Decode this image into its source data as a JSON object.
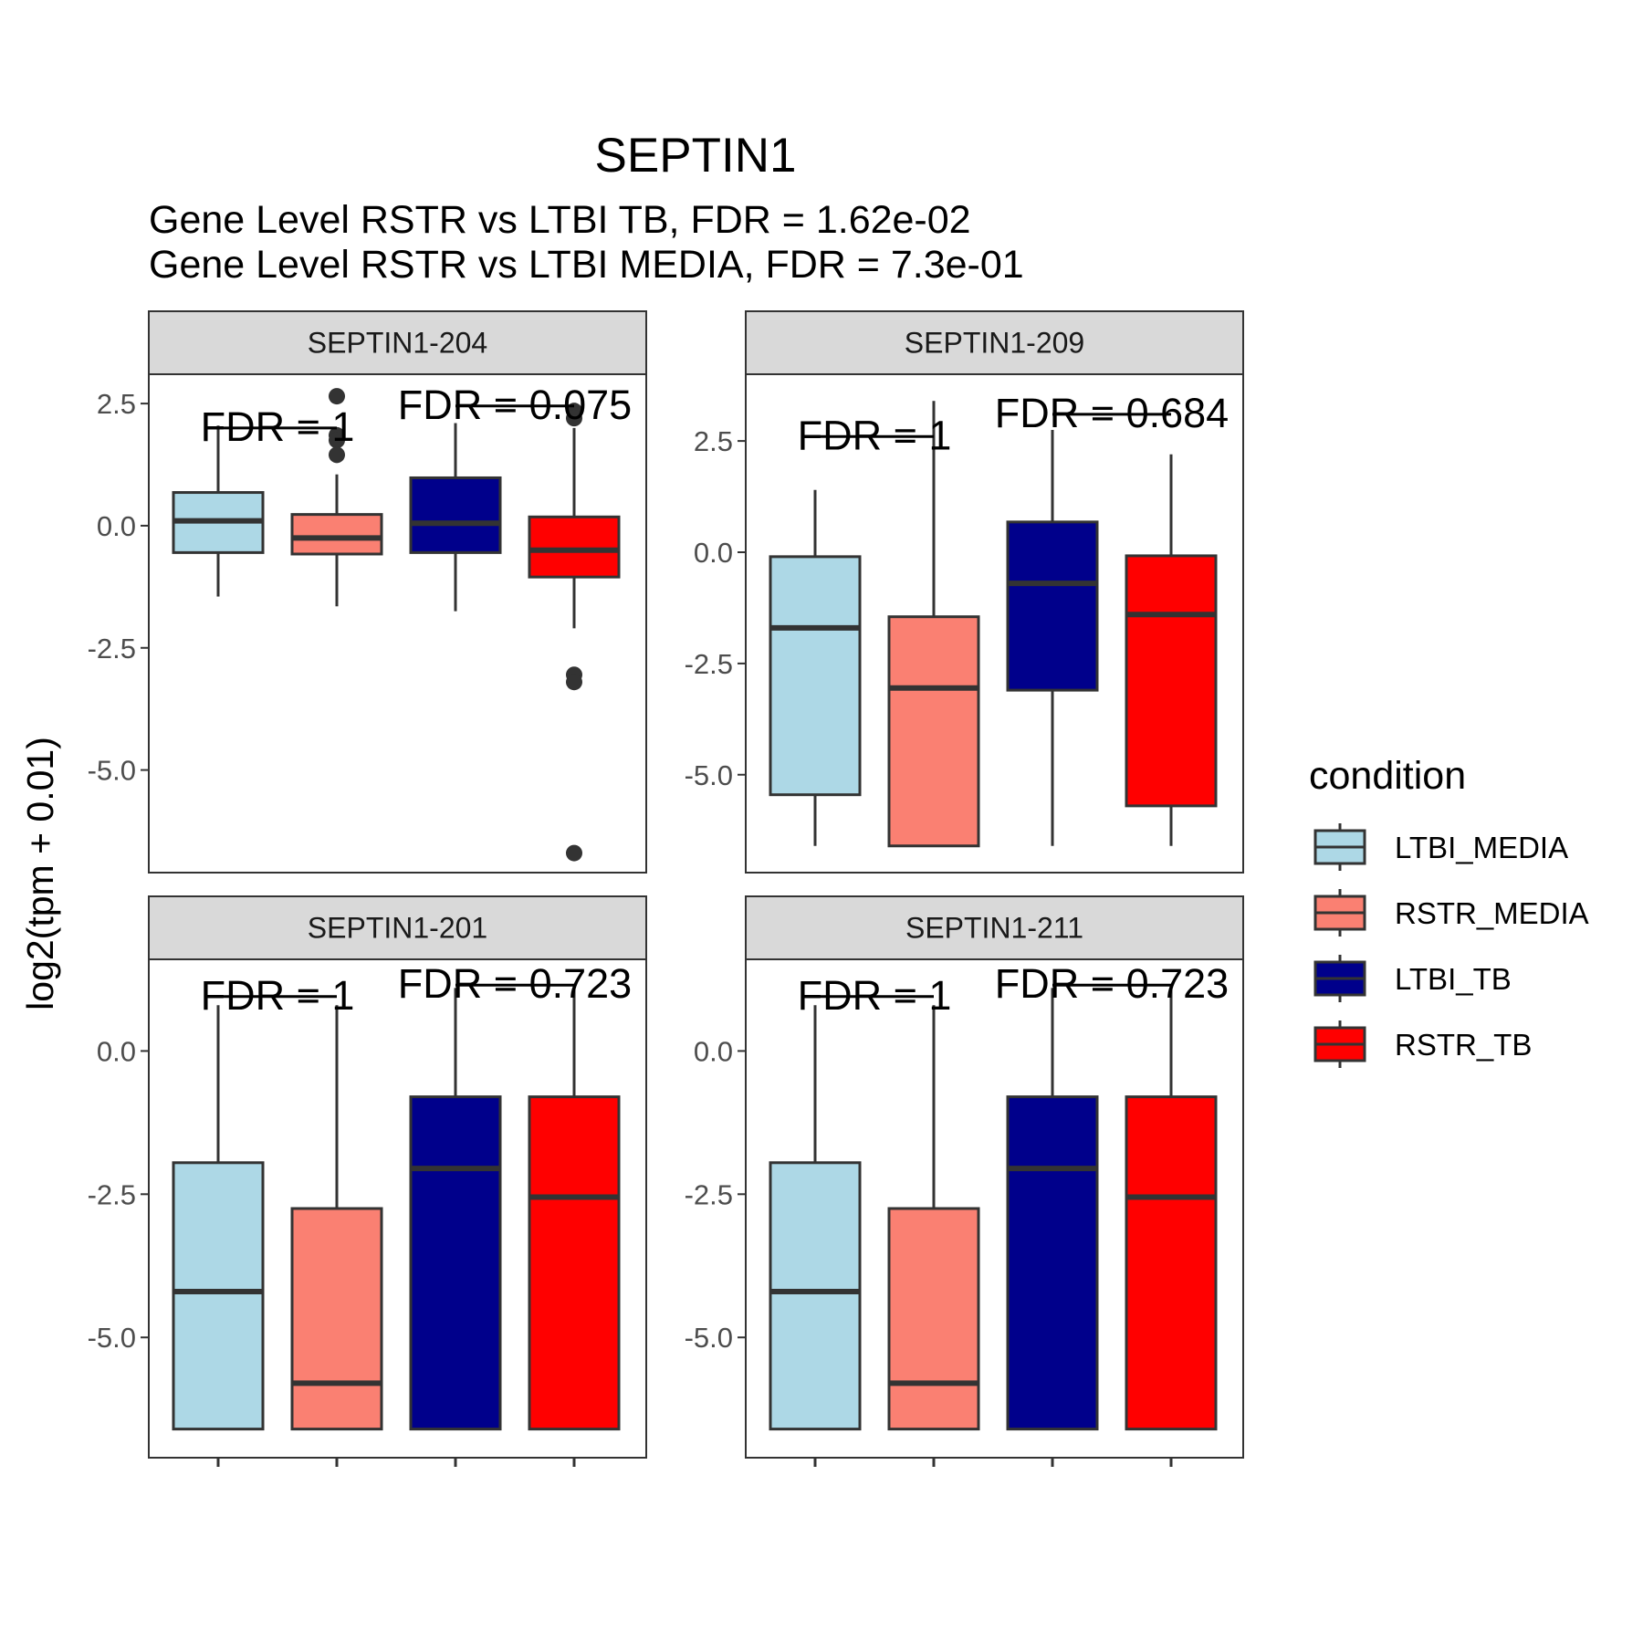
{
  "chart_data": {
    "type": "box",
    "title": "SEPTIN1",
    "subtitle_lines": [
      "Gene Level RSTR vs LTBI TB, FDR =  1.62e-02",
      "Gene Level RSTR vs LTBI MEDIA, FDR =  7.3e-01"
    ],
    "ylabel": "log2(tpm + 0.01)",
    "xlabel": "",
    "grid": false,
    "legend": {
      "title": "condition",
      "position": "right",
      "entries": [
        {
          "label": "LTBI_MEDIA",
          "color": "#ADD8E6"
        },
        {
          "label": "RSTR_MEDIA",
          "color": "#FA8072"
        },
        {
          "label": "LTBI_TB",
          "color": "#00008B"
        },
        {
          "label": "RSTR_TB",
          "color": "#FF0000"
        }
      ]
    },
    "categories": [
      "LTBI_MEDIA",
      "RSTR_MEDIA",
      "LTBI_TB",
      "RSTR_TB"
    ],
    "facets": [
      {
        "label": "SEPTIN1-204",
        "ylim": [
          -7.1,
          3.1
        ],
        "yticks": [
          {
            "value": 2.5,
            "label": "2.5"
          },
          {
            "value": 0.0,
            "label": "0.0"
          },
          {
            "value": -2.5,
            "label": "-2.5"
          },
          {
            "value": -5.0,
            "label": "-5.0"
          }
        ],
        "boxes": [
          {
            "lower": -1.45,
            "q1": -0.55,
            "median": 0.1,
            "q3": 0.68,
            "upper": 2.05,
            "outliers": []
          },
          {
            "lower": -1.65,
            "q1": -0.58,
            "median": -0.25,
            "q3": 0.23,
            "upper": 1.05,
            "outliers": [
              2.65,
              1.85,
              1.75,
              1.45
            ]
          },
          {
            "lower": -1.75,
            "q1": -0.55,
            "median": 0.05,
            "q3": 0.98,
            "upper": 2.1,
            "outliers": []
          },
          {
            "lower": -2.1,
            "q1": -1.05,
            "median": -0.5,
            "q3": 0.18,
            "upper": 2.0,
            "outliers": [
              2.35,
              2.2,
              -3.05,
              -3.2,
              -6.7
            ]
          }
        ],
        "comparisons": [
          {
            "pair": [
              1,
              2
            ],
            "y": 2.0,
            "label": "FDR =  1"
          },
          {
            "pair": [
              3,
              4
            ],
            "y": 2.45,
            "label": "FDR =  0.075"
          }
        ]
      },
      {
        "label": "SEPTIN1-209",
        "ylim": [
          -7.2,
          4.0
        ],
        "yticks": [
          {
            "value": 2.5,
            "label": "2.5"
          },
          {
            "value": 0.0,
            "label": "0.0"
          },
          {
            "value": -2.5,
            "label": "-2.5"
          },
          {
            "value": -5.0,
            "label": "-5.0"
          }
        ],
        "boxes": [
          {
            "lower": -6.6,
            "q1": -5.45,
            "median": -1.7,
            "q3": -0.1,
            "upper": 1.4,
            "outliers": []
          },
          {
            "lower": -6.6,
            "q1": -6.6,
            "median": -3.05,
            "q3": -1.45,
            "upper": 3.4,
            "outliers": []
          },
          {
            "lower": -6.6,
            "q1": -3.1,
            "median": -0.7,
            "q3": 0.68,
            "upper": 2.75,
            "outliers": []
          },
          {
            "lower": -6.6,
            "q1": -5.7,
            "median": -1.4,
            "q3": -0.08,
            "upper": 2.2,
            "outliers": []
          }
        ],
        "comparisons": [
          {
            "pair": [
              1,
              2
            ],
            "y": 2.6,
            "label": "FDR =  1"
          },
          {
            "pair": [
              3,
              4
            ],
            "y": 3.1,
            "label": "FDR =  0.684"
          }
        ]
      },
      {
        "label": "SEPTIN1-201",
        "ylim": [
          -7.1,
          1.6
        ],
        "yticks": [
          {
            "value": 0.0,
            "label": "0.0"
          },
          {
            "value": -2.5,
            "label": "-2.5"
          },
          {
            "value": -5.0,
            "label": "-5.0"
          }
        ],
        "boxes": [
          {
            "lower": -6.6,
            "q1": -6.6,
            "median": -4.2,
            "q3": -1.95,
            "upper": 0.8,
            "outliers": []
          },
          {
            "lower": -6.6,
            "q1": -6.6,
            "median": -5.8,
            "q3": -2.75,
            "upper": 0.8,
            "outliers": []
          },
          {
            "lower": -6.6,
            "q1": -6.6,
            "median": -2.05,
            "q3": -0.8,
            "upper": 1.1,
            "outliers": []
          },
          {
            "lower": -6.6,
            "q1": -6.6,
            "median": -2.55,
            "q3": -0.8,
            "upper": 1.1,
            "outliers": []
          }
        ],
        "comparisons": [
          {
            "pair": [
              1,
              2
            ],
            "y": 0.95,
            "label": "FDR =  1"
          },
          {
            "pair": [
              3,
              4
            ],
            "y": 1.15,
            "label": "FDR =  0.723"
          }
        ]
      },
      {
        "label": "SEPTIN1-211",
        "ylim": [
          -7.1,
          1.6
        ],
        "yticks": [
          {
            "value": 0.0,
            "label": "0.0"
          },
          {
            "value": -2.5,
            "label": "-2.5"
          },
          {
            "value": -5.0,
            "label": "-5.0"
          }
        ],
        "boxes": [
          {
            "lower": -6.6,
            "q1": -6.6,
            "median": -4.2,
            "q3": -1.95,
            "upper": 0.8,
            "outliers": []
          },
          {
            "lower": -6.6,
            "q1": -6.6,
            "median": -5.8,
            "q3": -2.75,
            "upper": 0.8,
            "outliers": []
          },
          {
            "lower": -6.6,
            "q1": -6.6,
            "median": -2.05,
            "q3": -0.8,
            "upper": 1.1,
            "outliers": []
          },
          {
            "lower": -6.6,
            "q1": -6.6,
            "median": -2.55,
            "q3": -0.8,
            "upper": 1.1,
            "outliers": []
          }
        ],
        "comparisons": [
          {
            "pair": [
              1,
              2
            ],
            "y": 0.95,
            "label": "FDR =  1"
          },
          {
            "pair": [
              3,
              4
            ],
            "y": 1.15,
            "label": "FDR =  0.723"
          }
        ]
      }
    ]
  }
}
